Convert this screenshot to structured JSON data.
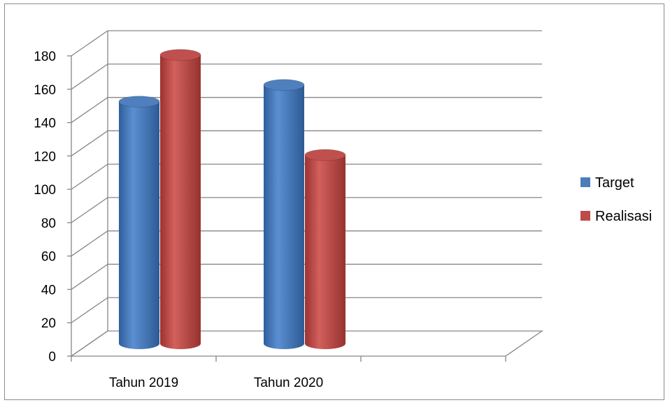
{
  "chart_data": {
    "type": "bar",
    "title": "",
    "xlabel": "",
    "ylabel": "",
    "categories": [
      "Tahun 2019",
      "Tahun 2020"
    ],
    "series": [
      {
        "name": "Target",
        "values": [
          145,
          155
        ],
        "color": "#4a7ebb"
      },
      {
        "name": "Realisasi",
        "values": [
          173,
          113
        ],
        "color": "#be4b48"
      }
    ],
    "ylim": [
      0,
      180
    ],
    "yticks": [
      0,
      20,
      40,
      60,
      80,
      100,
      120,
      140,
      160,
      180
    ],
    "grid": true,
    "legend": "right",
    "style": "3d-cylinder"
  }
}
